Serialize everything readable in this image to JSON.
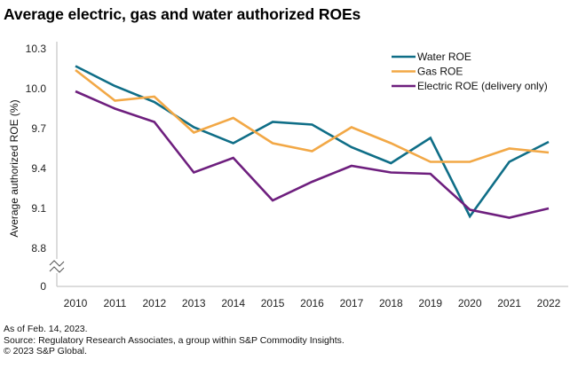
{
  "title": "Average electric, gas and water authorized ROEs",
  "footer": {
    "as_of": "As of Feb. 14, 2023.",
    "source": "Source: Regulatory Research Associates, a group within S&P Commodity Insights.",
    "copyright": "© 2023 S&P Global."
  },
  "chart_data": {
    "type": "line",
    "title": "Average electric, gas and water authorized ROEs",
    "xlabel": "",
    "ylabel": "Average authorized ROE (%)",
    "x": [
      "2010",
      "2011",
      "2012",
      "2013",
      "2014",
      "2015",
      "2016",
      "2017",
      "2018",
      "2019",
      "2020",
      "2021",
      "2022"
    ],
    "y_ticks": [
      "10.3",
      "10.0",
      "9.7",
      "9.4",
      "9.1",
      "8.8",
      "0"
    ],
    "ylim": [
      8.8,
      10.3
    ],
    "y_axis_break": true,
    "grid": false,
    "legend_position": "top-right",
    "series": [
      {
        "name": "Water ROE",
        "color": "#0f6e87",
        "values": [
          10.17,
          10.02,
          9.9,
          9.71,
          9.59,
          9.75,
          9.73,
          9.56,
          9.44,
          9.63,
          9.04,
          9.45,
          9.6
        ]
      },
      {
        "name": "Gas ROE",
        "color": "#f2a846",
        "values": [
          10.14,
          9.91,
          9.94,
          9.67,
          9.78,
          9.59,
          9.53,
          9.71,
          9.59,
          9.45,
          9.45,
          9.55,
          9.52
        ]
      },
      {
        "name": "Electric ROE (delivery only)",
        "color": "#6e1f7e",
        "values": [
          9.98,
          9.85,
          9.75,
          9.37,
          9.48,
          9.16,
          9.3,
          9.42,
          9.37,
          9.36,
          9.09,
          9.03,
          9.1
        ]
      }
    ]
  }
}
